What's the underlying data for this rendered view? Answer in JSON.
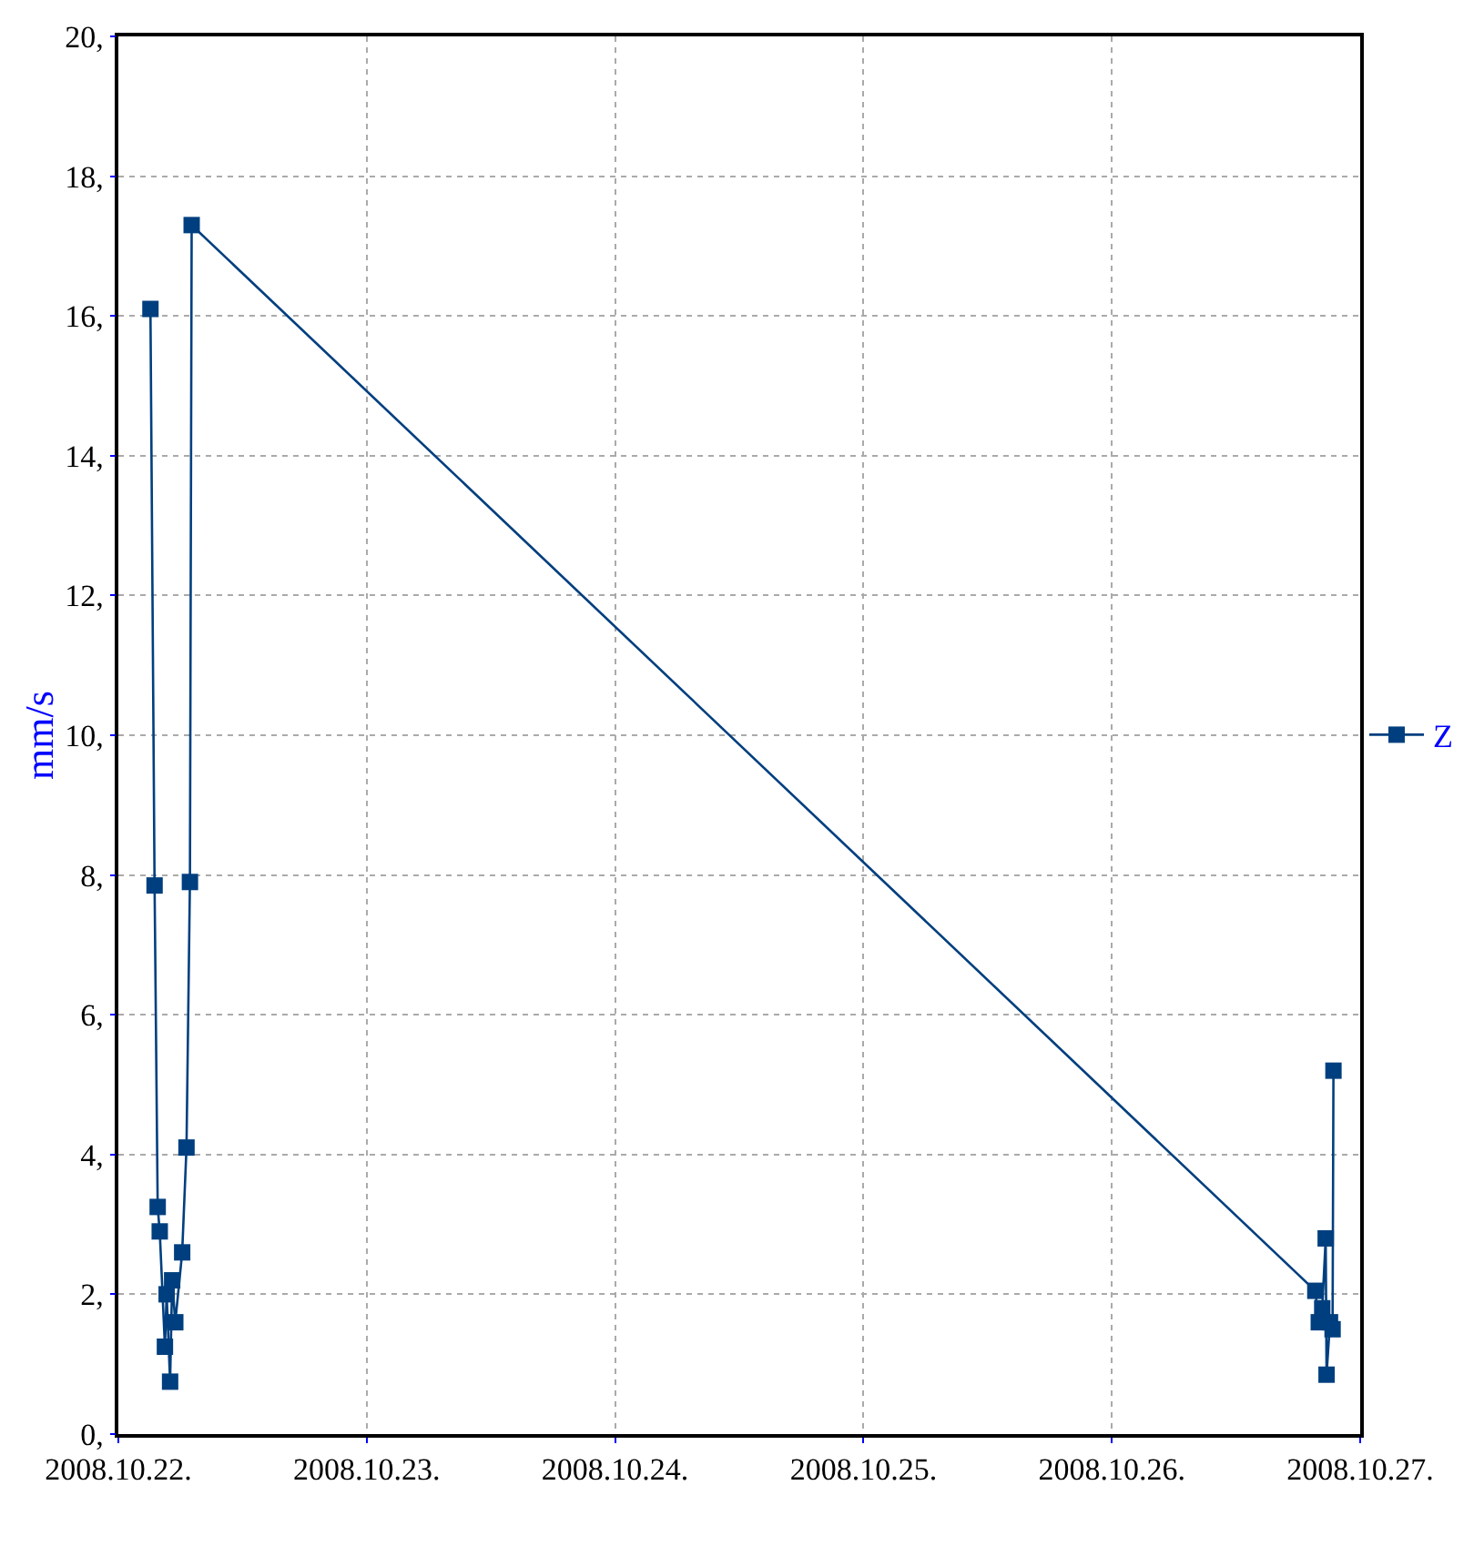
{
  "chart_data": {
    "type": "line",
    "ylabel": "mm/s",
    "x": [
      "2008-10-22T03:06",
      "2008-10-22T03:30",
      "2008-10-22T03:48",
      "2008-10-22T04:00",
      "2008-10-22T04:30",
      "2008-10-22T04:40",
      "2008-10-22T05:00",
      "2008-10-22T05:12",
      "2008-10-22T05:30",
      "2008-10-22T06:00",
      "2008-10-22T06:10",
      "2008-10-22T06:35",
      "2008-10-22T06:55",
      "2008-10-22T07:05",
      "2008-10-26T19:40",
      "2008-10-26T20:00",
      "2008-10-26T20:20",
      "2008-10-26T20:40",
      "2008-10-26T20:45",
      "2008-10-26T21:05",
      "2008-10-26T21:20",
      "2008-10-26T21:25"
    ],
    "series": [
      {
        "name": "Z",
        "color": "#003f7f",
        "values": [
          16.1,
          7.85,
          3.25,
          2.9,
          1.25,
          2.0,
          0.75,
          2.2,
          1.6,
          null,
          2.6,
          4.1,
          7.9,
          17.3,
          2.05,
          1.6,
          1.8,
          2.8,
          0.85,
          1.6,
          1.5,
          5.2
        ]
      }
    ],
    "xlim": [
      "2008-10-22",
      "2008-10-27"
    ],
    "xticks": [
      {
        "value": "2008-10-22",
        "label": "2008.10.22."
      },
      {
        "value": "2008-10-23",
        "label": "2008.10.23."
      },
      {
        "value": "2008-10-24",
        "label": "2008.10.24."
      },
      {
        "value": "2008-10-25",
        "label": "2008.10.25."
      },
      {
        "value": "2008-10-26",
        "label": "2008.10.26."
      },
      {
        "value": "2008-10-27",
        "label": "2008.10.27."
      }
    ],
    "ylim": [
      0,
      20
    ],
    "yticks": [
      {
        "value": 0,
        "label": "0,"
      },
      {
        "value": 2,
        "label": "2,"
      },
      {
        "value": 4,
        "label": "4,"
      },
      {
        "value": 6,
        "label": "6,"
      },
      {
        "value": 8,
        "label": "8,"
      },
      {
        "value": 10,
        "label": "10,"
      },
      {
        "value": 12,
        "label": "12,"
      },
      {
        "value": 14,
        "label": "14,"
      },
      {
        "value": 16,
        "label": "16,"
      },
      {
        "value": 18,
        "label": "18,"
      },
      {
        "value": 20,
        "label": "20,"
      }
    ],
    "grid": true,
    "legend": "right",
    "marker": "square",
    "line_style": "solid"
  }
}
